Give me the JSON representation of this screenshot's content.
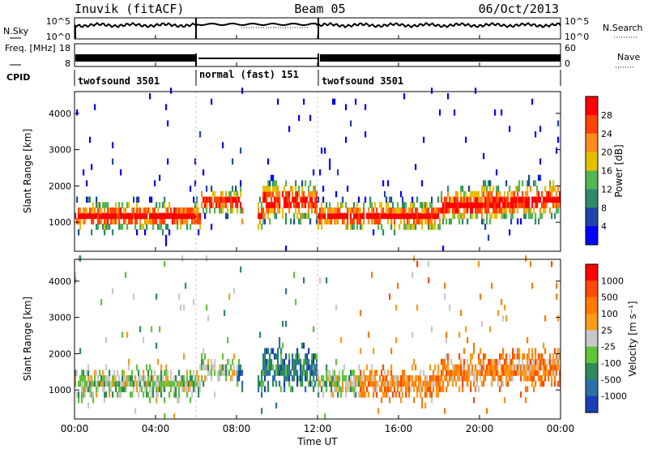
{
  "header": {
    "station": "Inuvik (fitACF)",
    "beam": "Beam 05",
    "date": "06/Oct/2013"
  },
  "chart_data": [
    {
      "type": "line",
      "name": "noise-panel",
      "left_label": "N.Sky",
      "right_label": "N.Search",
      "left_ticks": [
        "10^5",
        "10^0"
      ],
      "right_ticks": [
        "10^5",
        "10^0"
      ],
      "yscale": "log"
    },
    {
      "type": "line",
      "name": "frequency-panel",
      "left_label": "Freq. [MHz]",
      "right_label": "Nave",
      "left_ticks": [
        "18",
        "8"
      ],
      "right_ticks": [
        "60",
        "0"
      ]
    },
    {
      "type": "table",
      "name": "cpid-panel",
      "label": "CPID",
      "segments": [
        {
          "start": "00:00",
          "end": "06:00",
          "text": "twofsound 3501"
        },
        {
          "start": "06:00",
          "end": "12:00",
          "text": "normal (fast) 151"
        },
        {
          "start": "12:00",
          "end": "24:00",
          "text": "twofsound 3501"
        }
      ]
    },
    {
      "type": "heatmap",
      "name": "power-panel",
      "ylabel": "Slant Range [km]",
      "yticks": [
        1000,
        2000,
        3000,
        4000
      ],
      "ylim": [
        200,
        4600
      ],
      "colorbar_label": "Power [dB]",
      "colorbar_ticks": [
        "28",
        "24",
        "20",
        "16",
        "12",
        "8",
        "4"
      ],
      "colors": [
        "#0000ff",
        "#2244aa",
        "#2f8a6a",
        "#55b555",
        "#e5c000",
        "#ff8c1a",
        "#ff4400",
        "#ff0000"
      ]
    },
    {
      "type": "heatmap",
      "name": "velocity-panel",
      "ylabel": "Slant Range [km]",
      "yticks": [
        1000,
        2000,
        3000,
        4000
      ],
      "ylim": [
        200,
        4600
      ],
      "colorbar_label": "Velocity [m s⁻¹]",
      "colorbar_ticks": [
        "1000",
        "500",
        "100",
        "25",
        "-25",
        "-100",
        "-500",
        "-1000"
      ],
      "colors": [
        "#1a3fb5",
        "#2f6fa8",
        "#2e8a5a",
        "#62c23a",
        "#c8c8c8",
        "#ff9a1a",
        "#ff7a00",
        "#ff4a00",
        "#ff0000"
      ]
    }
  ],
  "x_axis": {
    "label": "Time UT",
    "ticks": [
      "00:00",
      "04:00",
      "08:00",
      "12:00",
      "16:00",
      "20:00",
      "00:00"
    ]
  }
}
